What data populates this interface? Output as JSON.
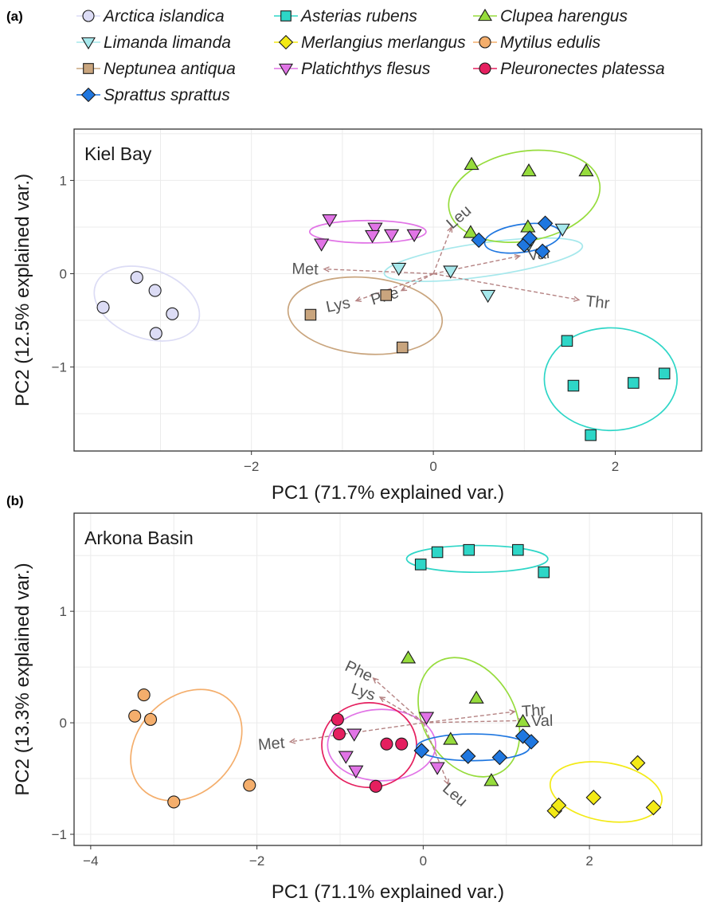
{
  "panels": {
    "a": {
      "tag": "(a)"
    },
    "b": {
      "tag": "(b)"
    }
  },
  "legend": [
    {
      "name": "Arctica islandica",
      "shape": "circle",
      "color": "#dcdcf5"
    },
    {
      "name": "Asterias rubens",
      "shape": "square",
      "color": "#2ed6c7"
    },
    {
      "name": "Clupea harengus",
      "shape": "triangle-up",
      "color": "#96dc3c"
    },
    {
      "name": "Limanda limanda",
      "shape": "triangle-down",
      "color": "#a6e8ec"
    },
    {
      "name": "Merlangius merlangus",
      "shape": "diamond",
      "color": "#f3ea16"
    },
    {
      "name": "Mytilus edulis",
      "shape": "circle",
      "color": "#f4ae6c"
    },
    {
      "name": "Neptunea antiqua",
      "shape": "square",
      "color": "#c9a57e"
    },
    {
      "name": "Platichthys flesus",
      "shape": "triangle-down",
      "color": "#e174e6"
    },
    {
      "name": "Pleuronectes platessa",
      "shape": "circle",
      "color": "#e51f5f"
    },
    {
      "name": "Sprattus sprattus",
      "shape": "diamond",
      "color": "#1f77e0"
    }
  ],
  "chart_data": [
    {
      "type": "scatter",
      "title": "Kiel Bay",
      "xlabel": "PC1 (71.7% explained var.)",
      "ylabel": "PC2 (12.5% explained var.)",
      "xlim": [
        -3.95,
        2.95
      ],
      "ylim": [
        -1.9,
        1.55
      ],
      "xticks": [
        -2,
        0,
        2
      ],
      "yticks": [
        -1,
        0,
        1
      ],
      "xtick_labels": [
        "−2",
        "0",
        "2"
      ],
      "ytick_labels": [
        "−1",
        "0",
        "1"
      ],
      "grid": true,
      "series": [
        {
          "name": "Arctica islandica",
          "points": [
            [
              -3.63,
              -0.36
            ],
            [
              -3.26,
              -0.04
            ],
            [
              -3.06,
              -0.18
            ],
            [
              -2.87,
              -0.43
            ],
            [
              -3.05,
              -0.64
            ]
          ],
          "ellipse": {
            "cx": -3.15,
            "cy": -0.32,
            "rx": 0.6,
            "ry": 0.37,
            "angle": -20
          }
        },
        {
          "name": "Neptunea antiqua",
          "points": [
            [
              -1.35,
              -0.44
            ],
            [
              -0.52,
              -0.23
            ],
            [
              -0.34,
              -0.79
            ]
          ],
          "ellipse": {
            "cx": -0.75,
            "cy": -0.45,
            "rx": 0.85,
            "ry": 0.41,
            "angle": -5
          }
        },
        {
          "name": "Platichthys flesus",
          "points": [
            [
              -1.14,
              0.58
            ],
            [
              -1.23,
              0.32
            ],
            [
              -0.64,
              0.49
            ],
            [
              -0.67,
              0.41
            ],
            [
              -0.46,
              0.42
            ],
            [
              -0.21,
              0.42
            ]
          ],
          "ellipse": {
            "cx": -0.72,
            "cy": 0.45,
            "rx": 0.64,
            "ry": 0.12,
            "angle": 0
          }
        },
        {
          "name": "Limanda limanda",
          "points": [
            [
              -0.38,
              0.06
            ],
            [
              0.19,
              0.03
            ],
            [
              0.6,
              -0.23
            ],
            [
              1.05,
              0.32
            ],
            [
              1.42,
              0.48
            ]
          ],
          "ellipse": {
            "cx": 0.55,
            "cy": 0.15,
            "rx": 1.1,
            "ry": 0.18,
            "angle": 8
          }
        },
        {
          "name": "Clupea harengus",
          "points": [
            [
              0.42,
              1.17
            ],
            [
              1.05,
              1.1
            ],
            [
              1.68,
              1.1
            ],
            [
              0.41,
              0.44
            ],
            [
              1.04,
              0.5
            ]
          ],
          "ellipse": {
            "cx": 1.0,
            "cy": 0.83,
            "rx": 0.84,
            "ry": 0.48,
            "angle": 10
          }
        },
        {
          "name": "Sprattus sprattus",
          "points": [
            [
              0.5,
              0.36
            ],
            [
              1.0,
              0.31
            ],
            [
              1.06,
              0.38
            ],
            [
              1.23,
              0.54
            ],
            [
              1.2,
              0.24
            ]
          ],
          "ellipse": {
            "cx": 0.98,
            "cy": 0.38,
            "rx": 0.42,
            "ry": 0.15,
            "angle": 8
          }
        },
        {
          "name": "Asterias rubens",
          "points": [
            [
              1.47,
              -0.72
            ],
            [
              1.54,
              -1.2
            ],
            [
              2.2,
              -1.17
            ],
            [
              2.54,
              -1.07
            ],
            [
              1.73,
              -1.73
            ]
          ],
          "ellipse": {
            "cx": 1.95,
            "cy": -1.13,
            "rx": 0.73,
            "ry": 0.55,
            "angle": 0
          }
        }
      ],
      "loadings": [
        {
          "label": "Leu",
          "x": 0.2,
          "y": 0.5
        },
        {
          "label": "Met",
          "x": -1.2,
          "y": 0.05
        },
        {
          "label": "Lys",
          "x": -0.85,
          "y": -0.29
        },
        {
          "label": "Phe",
          "x": -0.35,
          "y": -0.18
        },
        {
          "label": "Val",
          "x": 0.95,
          "y": 0.19
        },
        {
          "label": "Thr",
          "x": 1.6,
          "y": -0.28
        }
      ]
    },
    {
      "type": "scatter",
      "title": "Arkona Basin",
      "xlabel": "PC1 (71.1% explained var.)",
      "ylabel": "PC2 (13.3% explained var.)",
      "xlim": [
        -4.2,
        3.35
      ],
      "ylim": [
        -1.1,
        1.88
      ],
      "xticks": [
        -4,
        -2,
        0,
        2
      ],
      "yticks": [
        -1,
        0,
        1
      ],
      "xtick_labels": [
        "−4",
        "−2",
        "0",
        "2"
      ],
      "ytick_labels": [
        "−1",
        "0",
        "1"
      ],
      "grid": true,
      "series": [
        {
          "name": "Mytilus edulis",
          "points": [
            [
              -3.47,
              0.06
            ],
            [
              -3.28,
              0.03
            ],
            [
              -3.36,
              0.25
            ],
            [
              -3.0,
              -0.71
            ],
            [
              -2.09,
              -0.56
            ]
          ],
          "ellipse": {
            "cx": -2.85,
            "cy": -0.2,
            "rx": 0.75,
            "ry": 0.43,
            "angle": 45
          }
        },
        {
          "name": "Asterias rubens",
          "points": [
            [
              -0.03,
              1.42
            ],
            [
              0.17,
              1.53
            ],
            [
              0.55,
              1.55
            ],
            [
              1.14,
              1.55
            ],
            [
              1.45,
              1.35
            ]
          ],
          "ellipse": {
            "cx": 0.65,
            "cy": 1.47,
            "rx": 0.85,
            "ry": 0.12,
            "angle": 0
          }
        },
        {
          "name": "Clupea harengus",
          "points": [
            [
              -0.18,
              0.58
            ],
            [
              0.64,
              0.22
            ],
            [
              1.2,
              0.01
            ],
            [
              0.33,
              -0.15
            ],
            [
              0.82,
              -0.52
            ]
          ],
          "ellipse": {
            "cx": 0.55,
            "cy": 0.05,
            "rx": 0.55,
            "ry": 0.57,
            "angle": 30
          }
        },
        {
          "name": "Platichthys flesus",
          "points": [
            [
              0.04,
              0.05
            ],
            [
              -0.83,
              -0.1
            ],
            [
              -0.93,
              -0.3
            ],
            [
              -0.81,
              -0.43
            ],
            [
              0.17,
              -0.4
            ]
          ],
          "ellipse": {
            "cx": -0.5,
            "cy": -0.2,
            "rx": 0.65,
            "ry": 0.32,
            "angle": 0
          }
        },
        {
          "name": "Pleuronectes platessa",
          "points": [
            [
              -1.03,
              0.03
            ],
            [
              -1.01,
              -0.1
            ],
            [
              -0.44,
              -0.19
            ],
            [
              -0.26,
              -0.19
            ],
            [
              -0.57,
              -0.57
            ]
          ],
          "ellipse": {
            "cx": -0.65,
            "cy": -0.2,
            "rx": 0.57,
            "ry": 0.38,
            "angle": 0
          }
        },
        {
          "name": "Sprattus sprattus",
          "points": [
            [
              -0.02,
              -0.25
            ],
            [
              0.54,
              -0.3
            ],
            [
              0.92,
              -0.31
            ],
            [
              1.2,
              -0.12
            ],
            [
              1.3,
              -0.17
            ]
          ],
          "ellipse": {
            "cx": 0.6,
            "cy": -0.22,
            "rx": 0.68,
            "ry": 0.12,
            "angle": 0
          }
        },
        {
          "name": "Merlangius merlangus",
          "points": [
            [
              1.58,
              -0.79
            ],
            [
              1.63,
              -0.74
            ],
            [
              2.05,
              -0.67
            ],
            [
              2.58,
              -0.36
            ],
            [
              2.77,
              -0.76
            ]
          ],
          "ellipse": {
            "cx": 2.2,
            "cy": -0.62,
            "rx": 0.68,
            "ry": 0.26,
            "angle": -10
          }
        }
      ],
      "loadings": [
        {
          "label": "Phe",
          "x": -0.6,
          "y": 0.4
        },
        {
          "label": "Lys",
          "x": -0.52,
          "y": 0.23
        },
        {
          "label": "Met",
          "x": -1.6,
          "y": -0.17
        },
        {
          "label": "Thr",
          "x": 1.1,
          "y": 0.1
        },
        {
          "label": "Val",
          "x": 1.2,
          "y": 0.02
        },
        {
          "label": "Leu",
          "x": 0.3,
          "y": -0.55
        }
      ]
    }
  ]
}
